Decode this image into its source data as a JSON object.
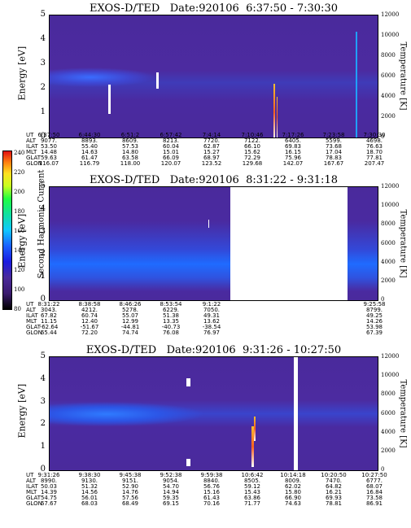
{
  "colorbar": {
    "label": "Second Harmonic Current",
    "ticks": [
      "240",
      "220",
      "200",
      "180",
      "160",
      "140",
      "120",
      "100",
      "80"
    ]
  },
  "chart_data": [
    {
      "type": "heatmap",
      "title": "EXOS-D/TED   Date:920106  6:37:50 - 7:30:30",
      "ylabel": "Energy [eV]",
      "y2label": "Temperature [K]",
      "ylim": [
        0,
        5
      ],
      "y2lim": [
        0,
        12000
      ],
      "yticks": [
        "5",
        "4",
        "3",
        "2",
        "1",
        "0"
      ],
      "y2ticks": [
        "12000",
        "10000",
        "8000",
        "6000",
        "4000",
        "2000",
        "0"
      ],
      "rows": [
        {
          "label": "UT",
          "values": [
            "6:37:50",
            "6:44:30",
            "6:51:2",
            "6:57:42",
            "7:4:14",
            "7:10:46",
            "7:17:26",
            "7:23:58",
            "7:30:30"
          ]
        },
        {
          "label": "ALT",
          "values": [
            "9077.",
            "8893.",
            "8609.",
            "8213.",
            "7720.",
            "7122.",
            "6405.",
            "5599.",
            "4698."
          ]
        },
        {
          "label": "ILAT",
          "values": [
            "53.50",
            "55.40",
            "57.53",
            "60.04",
            "62.87",
            "66.10",
            "69.83",
            "73.68",
            "76.63"
          ]
        },
        {
          "label": "MLT",
          "values": [
            "14.48",
            "14.63",
            "14.80",
            "15.01",
            "15.27",
            "15.62",
            "16.15",
            "17.04",
            "18.70"
          ]
        },
        {
          "label": "GLAT",
          "values": [
            "59.63",
            "61.47",
            "63.58",
            "66.09",
            "68.97",
            "72.29",
            "75.96",
            "78.83",
            "77.81"
          ]
        },
        {
          "label": "GLON",
          "values": [
            "116.07",
            "116.79",
            "118.00",
            "120.07",
            "123.52",
            "129.68",
            "142.07",
            "167.67",
            "207.47"
          ]
        }
      ]
    },
    {
      "type": "heatmap",
      "title": "EXOS-D/TED   Date:920106  8:31:22 - 9:31:18",
      "ylabel": "Energy [eV]",
      "y2label": "Temperature [K]",
      "ylim": [
        0,
        5
      ],
      "y2lim": [
        0,
        12000
      ],
      "yticks": [
        "5",
        "4",
        "3",
        "2",
        "1",
        "0"
      ],
      "y2ticks": [
        "12000",
        "10000",
        "8000",
        "6000",
        "4000",
        "2000",
        "0"
      ],
      "rows": [
        {
          "label": "UT",
          "values": [
            "8:31:22",
            "8:38:58",
            "8:46:26",
            "8:53:54",
            "9:1:22",
            "",
            "",
            "",
            "9:25:58"
          ]
        },
        {
          "label": "ALT",
          "values": [
            "3043.",
            "4212.",
            "5278.",
            "6229.",
            "7050.",
            "",
            "",
            "",
            "8799."
          ]
        },
        {
          "label": "ILAT",
          "values": [
            "67.82",
            "60.74",
            "55.07",
            "51.38",
            "49.31",
            "",
            "",
            "",
            "49.25"
          ]
        },
        {
          "label": "MLT",
          "values": [
            "11.15",
            "12.40",
            "12.99",
            "13.35",
            "13.62",
            "",
            "",
            "",
            "14.26"
          ]
        },
        {
          "label": "GLAT",
          "values": [
            "-62.64",
            "-51.67",
            "-44.81",
            "-40.73",
            "-38.54",
            "",
            "",
            "",
            "53.98"
          ]
        },
        {
          "label": "GLON",
          "values": [
            "65.44",
            "72.20",
            "74.74",
            "76.08",
            "76.97",
            "",
            "",
            "",
            "67.39"
          ]
        }
      ]
    },
    {
      "type": "heatmap",
      "title": "EXOS-D/TED   Date:920106  9:31:26 - 10:27:50",
      "ylabel": "Energy [eV]",
      "y2label": "Temperature [K]",
      "ylim": [
        0,
        5
      ],
      "y2lim": [
        0,
        12000
      ],
      "yticks": [
        "5",
        "4",
        "3",
        "2",
        "1",
        "0"
      ],
      "y2ticks": [
        "12000",
        "10000",
        "8000",
        "6000",
        "4000",
        "2000",
        "0"
      ],
      "rows": [
        {
          "label": "UT",
          "values": [
            "9:31:26",
            "9:38:30",
            "9:45:38",
            "9:52:38",
            "9:59:38",
            "10:6:42",
            "10:14:18",
            "10:20:50",
            "10:27:50"
          ]
        },
        {
          "label": "ALT",
          "values": [
            "8990.",
            "9130.",
            "9151.",
            "9054.",
            "8840.",
            "8505.",
            "8009.",
            "7470.",
            "6777."
          ]
        },
        {
          "label": "ILAT",
          "values": [
            "50.03",
            "51.32",
            "52.90",
            "54.70",
            "56.76",
            "59.12",
            "62.02",
            "64.82",
            "68.07"
          ]
        },
        {
          "label": "MLT",
          "values": [
            "14.39",
            "14.56",
            "14.76",
            "14.94",
            "15.16",
            "15.43",
            "15.80",
            "16.21",
            "16.84"
          ]
        },
        {
          "label": "GLAT",
          "values": [
            "54.75",
            "56.01",
            "57.56",
            "59.35",
            "61.43",
            "63.86",
            "66.90",
            "69.93",
            "73.58"
          ]
        },
        {
          "label": "GLON",
          "values": [
            "67.67",
            "68.03",
            "68.49",
            "69.15",
            "70.16",
            "71.77",
            "74.63",
            "78.81",
            "86.91"
          ]
        }
      ]
    }
  ]
}
